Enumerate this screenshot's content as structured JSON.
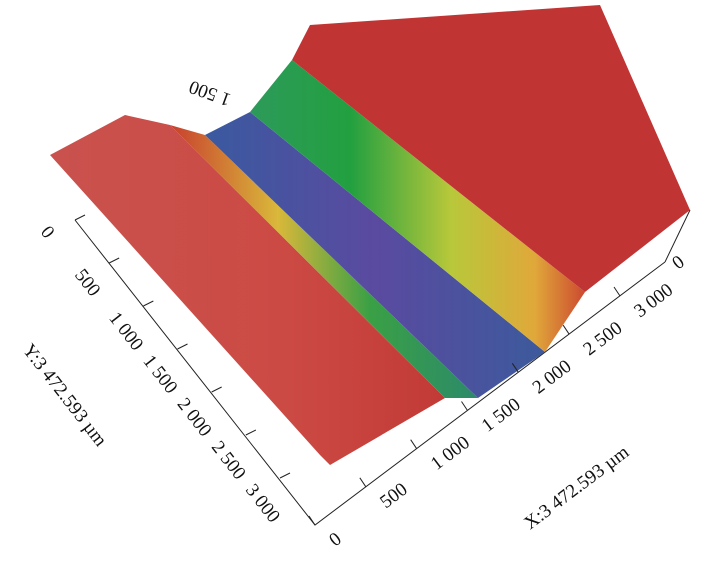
{
  "figure": {
    "z_tick": "1 500",
    "y_axis": {
      "label": "Y:3 472.593 µm",
      "ticks": [
        "0",
        "500",
        "1 000",
        "1 500",
        "2 000",
        "2 500",
        "3 000"
      ]
    },
    "x_axis": {
      "label": "X:3 472.593 µm",
      "ticks": [
        "0",
        "500",
        "1 000",
        "1 500",
        "2 000",
        "2 500",
        "3 000"
      ]
    },
    "corner_label": "0"
  }
}
